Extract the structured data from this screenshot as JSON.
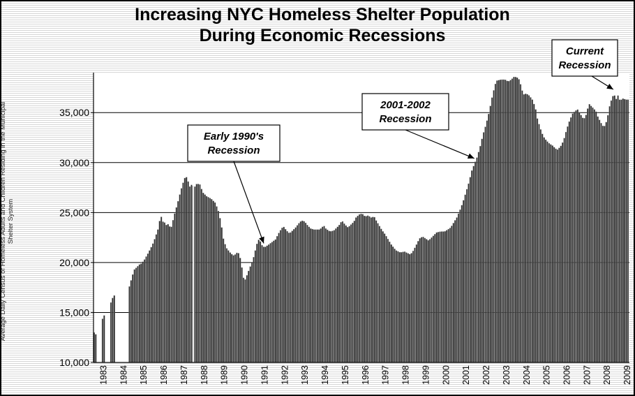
{
  "colors": {
    "bar_fill": "#2b2b2b",
    "bar_edge": "#8a8a8a",
    "gridline": "#000000",
    "annotation_box_border": "#000000",
    "annotation_box_fill": "#ffffff"
  },
  "chart_data": {
    "type": "bar",
    "title": "Increasing NYC Homeless Shelter Population During Economic Recessions",
    "title_lines": [
      "Increasing NYC Homeless Shelter Population",
      "During Economic Recessions"
    ],
    "xlabel": "",
    "ylabel": "Average Daily Census of Homeless Adults and Children Residing in the Municipal Shelter System",
    "ylabel_lines": [
      "Average Daily Census of Homeless Adults and Children Residing in the Municipal",
      "Shelter System"
    ],
    "ylim": [
      10000,
      39000
    ],
    "yticks": [
      10000,
      15000,
      20000,
      25000,
      30000,
      35000
    ],
    "ytick_labels": [
      "10,000",
      "15,000",
      "20,000",
      "25,000",
      "30,000",
      "35,000"
    ],
    "grid": true,
    "x_range": [
      1983,
      2009.6
    ],
    "x_tick_labels": [
      "1983",
      "1984",
      "1985",
      "1986",
      "1987",
      "1988",
      "1989",
      "1990",
      "1991",
      "1992",
      "1993",
      "1994",
      "1995",
      "1996",
      "1997",
      "1998",
      "1999",
      "2000",
      "2001",
      "2002",
      "2003",
      "2004",
      "2005",
      "2006",
      "2007",
      "2008",
      "2009"
    ],
    "bar_granularity": "monthly",
    "series": [
      {
        "values_by_date": [
          [
            1983.0,
            13000
          ],
          [
            1983.08,
            12800
          ],
          [
            1983.4,
            14300
          ],
          [
            1983.5,
            14700
          ],
          [
            1983.8,
            15800
          ],
          [
            1983.9,
            16400
          ],
          [
            1984.0,
            16700
          ],
          [
            1984.75,
            17600
          ],
          [
            1984.9,
            18700
          ],
          [
            1985.0,
            19300
          ],
          [
            1985.1,
            19500
          ],
          [
            1985.25,
            19800
          ],
          [
            1985.35,
            19900
          ],
          [
            1985.5,
            20300
          ],
          [
            1985.7,
            21000
          ],
          [
            1985.9,
            21800
          ],
          [
            1986.05,
            22600
          ],
          [
            1986.2,
            23500
          ],
          [
            1986.3,
            24800
          ],
          [
            1986.4,
            24100
          ],
          [
            1986.5,
            24000
          ],
          [
            1986.6,
            23700
          ],
          [
            1986.7,
            23900
          ],
          [
            1986.8,
            23300
          ],
          [
            1986.9,
            24100
          ],
          [
            1987.0,
            24900
          ],
          [
            1987.15,
            26000
          ],
          [
            1987.3,
            27200
          ],
          [
            1987.45,
            28200
          ],
          [
            1987.55,
            28700
          ],
          [
            1987.65,
            28200
          ],
          [
            1987.75,
            27600
          ],
          [
            1987.85,
            27800
          ],
          [
            1987.95,
            27600
          ],
          [
            1988.0,
            27600
          ],
          [
            1988.1,
            27900
          ],
          [
            1988.25,
            27800
          ],
          [
            1988.4,
            27000
          ],
          [
            1988.6,
            26600
          ],
          [
            1988.8,
            26400
          ],
          [
            1989.0,
            26000
          ],
          [
            1989.15,
            25300
          ],
          [
            1989.3,
            24000
          ],
          [
            1989.4,
            22500
          ],
          [
            1989.55,
            21500
          ],
          [
            1989.75,
            21000
          ],
          [
            1989.9,
            20700
          ],
          [
            1990.0,
            20800
          ],
          [
            1990.1,
            21000
          ],
          [
            1990.2,
            20900
          ],
          [
            1990.3,
            20000
          ],
          [
            1990.4,
            18500
          ],
          [
            1990.5,
            18300
          ],
          [
            1990.6,
            18800
          ],
          [
            1990.75,
            19600
          ],
          [
            1990.9,
            20400
          ],
          [
            1991.0,
            21200
          ],
          [
            1991.1,
            22000
          ],
          [
            1991.2,
            22400
          ],
          [
            1991.3,
            21800
          ],
          [
            1991.45,
            21500
          ],
          [
            1991.6,
            21700
          ],
          [
            1991.8,
            22000
          ],
          [
            1992.0,
            22300
          ],
          [
            1992.15,
            22900
          ],
          [
            1992.3,
            23400
          ],
          [
            1992.4,
            23600
          ],
          [
            1992.55,
            23200
          ],
          [
            1992.7,
            22900
          ],
          [
            1992.85,
            23200
          ],
          [
            1993.0,
            23500
          ],
          [
            1993.15,
            23900
          ],
          [
            1993.3,
            24200
          ],
          [
            1993.45,
            24100
          ],
          [
            1993.6,
            23700
          ],
          [
            1993.75,
            23400
          ],
          [
            1993.9,
            23300
          ],
          [
            1994.0,
            23300
          ],
          [
            1994.2,
            23300
          ],
          [
            1994.4,
            23700
          ],
          [
            1994.5,
            23400
          ],
          [
            1994.7,
            23100
          ],
          [
            1994.9,
            23200
          ],
          [
            1995.0,
            23400
          ],
          [
            1995.15,
            23700
          ],
          [
            1995.3,
            24200
          ],
          [
            1995.45,
            23800
          ],
          [
            1995.6,
            23500
          ],
          [
            1995.75,
            23800
          ],
          [
            1995.9,
            24100
          ],
          [
            1996.0,
            24500
          ],
          [
            1996.15,
            24800
          ],
          [
            1996.3,
            24900
          ],
          [
            1996.45,
            24600
          ],
          [
            1996.6,
            24700
          ],
          [
            1996.75,
            24500
          ],
          [
            1996.9,
            24600
          ],
          [
            1997.0,
            24200
          ],
          [
            1997.15,
            23700
          ],
          [
            1997.3,
            23200
          ],
          [
            1997.45,
            22800
          ],
          [
            1997.6,
            22300
          ],
          [
            1997.75,
            21800
          ],
          [
            1997.9,
            21400
          ],
          [
            1998.0,
            21200
          ],
          [
            1998.2,
            21000
          ],
          [
            1998.4,
            21100
          ],
          [
            1998.5,
            21000
          ],
          [
            1998.7,
            20800
          ],
          [
            1998.85,
            21200
          ],
          [
            1999.0,
            21800
          ],
          [
            1999.15,
            22400
          ],
          [
            1999.3,
            22600
          ],
          [
            1999.45,
            22400
          ],
          [
            1999.6,
            22200
          ],
          [
            1999.75,
            22500
          ],
          [
            1999.9,
            22800
          ],
          [
            2000.0,
            23000
          ],
          [
            2000.2,
            23100
          ],
          [
            2000.4,
            23100
          ],
          [
            2000.55,
            23300
          ],
          [
            2000.7,
            23500
          ],
          [
            2000.85,
            24000
          ],
          [
            2001.0,
            24500
          ],
          [
            2001.15,
            25200
          ],
          [
            2001.3,
            26000
          ],
          [
            2001.45,
            27000
          ],
          [
            2001.6,
            28000
          ],
          [
            2001.75,
            29200
          ],
          [
            2001.9,
            30000
          ],
          [
            2002.0,
            30500
          ],
          [
            2002.15,
            31500
          ],
          [
            2002.3,
            32800
          ],
          [
            2002.45,
            33800
          ],
          [
            2002.6,
            35000
          ],
          [
            2002.75,
            36500
          ],
          [
            2002.9,
            37800
          ],
          [
            2003.0,
            38200
          ],
          [
            2003.2,
            38300
          ],
          [
            2003.4,
            38300
          ],
          [
            2003.55,
            38100
          ],
          [
            2003.7,
            38300
          ],
          [
            2003.85,
            38600
          ],
          [
            2004.0,
            38500
          ],
          [
            2004.1,
            38300
          ],
          [
            2004.2,
            37600
          ],
          [
            2004.3,
            36800
          ],
          [
            2004.45,
            36900
          ],
          [
            2004.6,
            36700
          ],
          [
            2004.75,
            36300
          ],
          [
            2004.9,
            35500
          ],
          [
            2005.0,
            34400
          ],
          [
            2005.15,
            33400
          ],
          [
            2005.3,
            32600
          ],
          [
            2005.45,
            32200
          ],
          [
            2005.6,
            31900
          ],
          [
            2005.75,
            31700
          ],
          [
            2005.9,
            31400
          ],
          [
            2006.0,
            31300
          ],
          [
            2006.15,
            31600
          ],
          [
            2006.3,
            32200
          ],
          [
            2006.45,
            33300
          ],
          [
            2006.6,
            34200
          ],
          [
            2006.75,
            34900
          ],
          [
            2006.9,
            35200
          ],
          [
            2007.0,
            35300
          ],
          [
            2007.15,
            34800
          ],
          [
            2007.3,
            34300
          ],
          [
            2007.45,
            34900
          ],
          [
            2007.55,
            35900
          ],
          [
            2007.65,
            35700
          ],
          [
            2007.8,
            35400
          ],
          [
            2007.95,
            35000
          ],
          [
            2008.0,
            34600
          ],
          [
            2008.15,
            34000
          ],
          [
            2008.3,
            33500
          ],
          [
            2008.45,
            34200
          ],
          [
            2008.6,
            35800
          ],
          [
            2008.7,
            36400
          ],
          [
            2008.8,
            36900
          ],
          [
            2008.9,
            36300
          ],
          [
            2009.0,
            36700
          ],
          [
            2009.1,
            36200
          ],
          [
            2009.25,
            36400
          ],
          [
            2009.4,
            36300
          ],
          [
            2009.55,
            36300
          ]
        ],
        "gaps": [
          [
            1983.13,
            1983.37
          ],
          [
            1983.55,
            1983.75
          ],
          [
            1984.05,
            1984.72
          ],
          [
            1987.98,
            1987.99
          ]
        ]
      }
    ],
    "annotations": [
      {
        "text_lines": [
          "Early 1990's",
          "Recession"
        ],
        "points_to_date": 1991.45
      },
      {
        "text_lines": [
          "2001-2002",
          "Recession"
        ],
        "points_to_date": 2001.9
      },
      {
        "text_lines": [
          "Current",
          "Recession"
        ],
        "points_to_date": 2008.8
      }
    ]
  }
}
